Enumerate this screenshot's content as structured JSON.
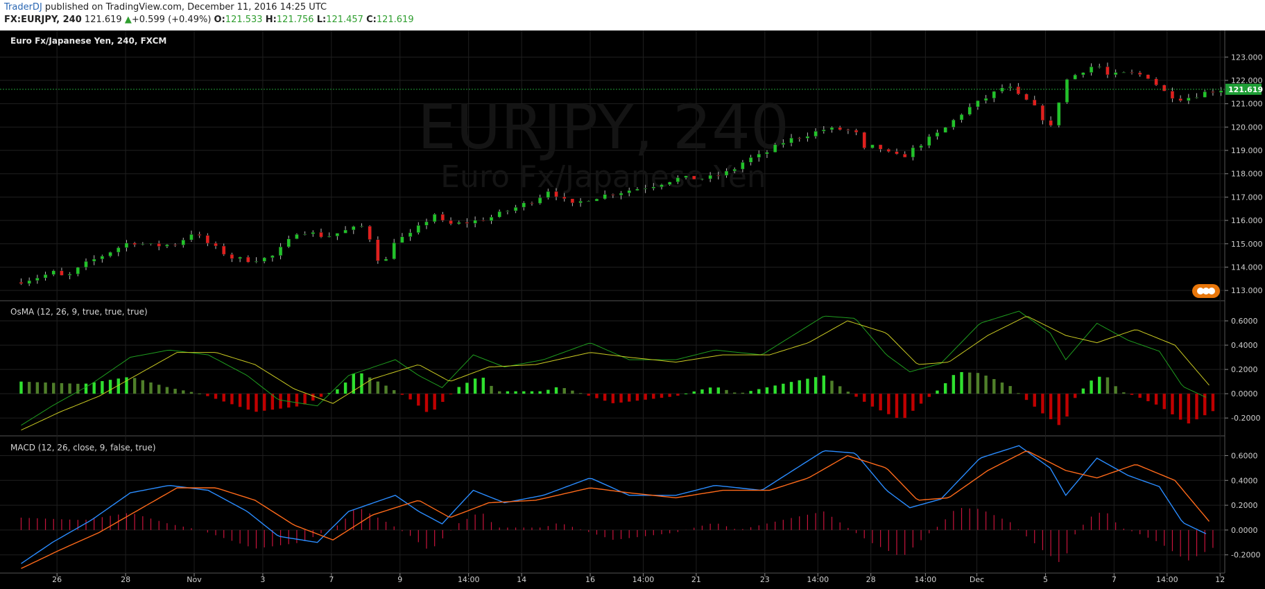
{
  "header": {
    "author": "TraderDJ",
    "published": "published on TradingView.com, December 11, 2016 14:25 UTC",
    "symbol": "FX:EURJPY, 240",
    "last": "121.619",
    "change": "+0.599 (+0.49%)",
    "o_label": "O:",
    "o_value": "121.533",
    "h_label": "H:",
    "h_value": "121.756",
    "l_label": "L:",
    "l_value": "121.457",
    "c_label": "C:",
    "c_value": "121.619"
  },
  "colors": {
    "background": "#000000",
    "grid": "#1f1f1f",
    "up_candle": "#22c22a",
    "down_candle": "#e0201e",
    "osma_up": "#2fe02f",
    "osma_up_weak": "#4f7f2a",
    "osma_down": "#c00000",
    "osma_macd_line": "#1f9e1f",
    "osma_signal_line": "#cccc22",
    "macd_line": "#2a8cff",
    "macd_signal": "#ff6a1a",
    "macd_hist": "#c8143c",
    "last_price_tag": "#1f9e36"
  },
  "chart_data": [
    {
      "type": "candlestick",
      "title": "Euro Fx/Japanese Yen, 240, FXCM",
      "watermark_symbol": "EURJPY, 240",
      "watermark_name": "Euro Fx/Japanese Yen",
      "ylim": [
        112.5,
        123.9
      ],
      "y_ticks": [
        "113.000",
        "114.000",
        "115.000",
        "116.000",
        "117.000",
        "118.000",
        "119.000",
        "120.000",
        "121.000",
        "122.000",
        "123.000"
      ],
      "last_price": "121.619",
      "close_path": [
        [
          0,
          113.4
        ],
        [
          12,
          113.6
        ],
        [
          22,
          113.8
        ],
        [
          28,
          113.5
        ],
        [
          40,
          114.1
        ],
        [
          55,
          114.6
        ],
        [
          70,
          115.1
        ],
        [
          85,
          114.9
        ],
        [
          100,
          115.0
        ],
        [
          110,
          115.5
        ],
        [
          120,
          115.0
        ],
        [
          135,
          114.4
        ],
        [
          145,
          114.3
        ],
        [
          160,
          114.4
        ],
        [
          170,
          115.0
        ],
        [
          178,
          115.6
        ],
        [
          195,
          115.3
        ],
        [
          210,
          115.6
        ],
        [
          222,
          115.8
        ],
        [
          226,
          114.4
        ],
        [
          234,
          114.3
        ],
        [
          238,
          115.1
        ],
        [
          250,
          115.4
        ],
        [
          265,
          116.3
        ],
        [
          272,
          115.8
        ],
        [
          285,
          115.9
        ],
        [
          300,
          116.1
        ],
        [
          315,
          116.5
        ],
        [
          330,
          116.9
        ],
        [
          338,
          117.3
        ],
        [
          346,
          117.0
        ],
        [
          352,
          116.6
        ],
        [
          362,
          116.9
        ],
        [
          375,
          117.1
        ],
        [
          390,
          117.3
        ],
        [
          405,
          117.5
        ],
        [
          420,
          117.8
        ],
        [
          440,
          117.8
        ],
        [
          455,
          118.1
        ],
        [
          465,
          118.6
        ],
        [
          475,
          118.8
        ],
        [
          490,
          119.4
        ],
        [
          505,
          119.7
        ],
        [
          515,
          119.9
        ],
        [
          525,
          119.9
        ],
        [
          535,
          119.8
        ],
        [
          540,
          119.0
        ],
        [
          548,
          119.2
        ],
        [
          558,
          118.8
        ],
        [
          565,
          118.7
        ],
        [
          575,
          119.2
        ],
        [
          590,
          119.8
        ],
        [
          605,
          120.7
        ],
        [
          615,
          121.1
        ],
        [
          625,
          121.5
        ],
        [
          632,
          121.8
        ],
        [
          640,
          121.3
        ],
        [
          648,
          121.0
        ],
        [
          655,
          120.4
        ],
        [
          660,
          119.9
        ],
        [
          665,
          121.0
        ],
        [
          670,
          122.0
        ],
        [
          680,
          122.4
        ],
        [
          690,
          122.7
        ],
        [
          697,
          122.2
        ],
        [
          710,
          122.3
        ],
        [
          722,
          122.2
        ],
        [
          735,
          121.4
        ],
        [
          745,
          121.2
        ],
        [
          760,
          121.5
        ],
        [
          770,
          121.619
        ]
      ]
    },
    {
      "type": "osma",
      "title": "OsMA (12, 26, 9, true, true, true)",
      "ylim": [
        -0.33,
        0.72
      ],
      "y_ticks": [
        "0.6000",
        "0.4000",
        "0.2000",
        "0.0000",
        "-0.2000"
      ],
      "macd_path": [
        [
          0,
          -0.26
        ],
        [
          20,
          -0.1
        ],
        [
          45,
          0.08
        ],
        [
          70,
          0.3
        ],
        [
          95,
          0.36
        ],
        [
          120,
          0.32
        ],
        [
          145,
          0.15
        ],
        [
          165,
          -0.05
        ],
        [
          190,
          -0.1
        ],
        [
          210,
          0.15
        ],
        [
          240,
          0.28
        ],
        [
          255,
          0.15
        ],
        [
          270,
          0.05
        ],
        [
          290,
          0.32
        ],
        [
          310,
          0.22
        ],
        [
          335,
          0.28
        ],
        [
          365,
          0.42
        ],
        [
          390,
          0.28
        ],
        [
          420,
          0.28
        ],
        [
          445,
          0.36
        ],
        [
          475,
          0.32
        ],
        [
          500,
          0.52
        ],
        [
          515,
          0.64
        ],
        [
          535,
          0.62
        ],
        [
          555,
          0.32
        ],
        [
          570,
          0.18
        ],
        [
          590,
          0.25
        ],
        [
          615,
          0.58
        ],
        [
          640,
          0.68
        ],
        [
          660,
          0.5
        ],
        [
          670,
          0.28
        ],
        [
          690,
          0.58
        ],
        [
          710,
          0.44
        ],
        [
          730,
          0.35
        ],
        [
          745,
          0.06
        ],
        [
          760,
          -0.03
        ]
      ],
      "signal_path": [
        [
          0,
          -0.3
        ],
        [
          25,
          -0.15
        ],
        [
          50,
          -0.02
        ],
        [
          75,
          0.16
        ],
        [
          100,
          0.34
        ],
        [
          125,
          0.34
        ],
        [
          150,
          0.24
        ],
        [
          175,
          0.04
        ],
        [
          200,
          -0.08
        ],
        [
          225,
          0.12
        ],
        [
          255,
          0.24
        ],
        [
          275,
          0.1
        ],
        [
          300,
          0.22
        ],
        [
          330,
          0.24
        ],
        [
          365,
          0.34
        ],
        [
          390,
          0.3
        ],
        [
          420,
          0.26
        ],
        [
          450,
          0.32
        ],
        [
          480,
          0.32
        ],
        [
          505,
          0.42
        ],
        [
          530,
          0.6
        ],
        [
          555,
          0.5
        ],
        [
          575,
          0.24
        ],
        [
          595,
          0.26
        ],
        [
          620,
          0.48
        ],
        [
          645,
          0.64
        ],
        [
          670,
          0.48
        ],
        [
          690,
          0.42
        ],
        [
          715,
          0.53
        ],
        [
          740,
          0.4
        ],
        [
          762,
          0.07
        ]
      ],
      "hist_segments": [
        [
          0,
          0.1
        ],
        [
          40,
          0.08
        ],
        [
          70,
          0.14
        ],
        [
          95,
          0.05
        ],
        [
          115,
          0.0
        ],
        [
          150,
          -0.15
        ],
        [
          180,
          -0.1
        ],
        [
          205,
          0.05
        ],
        [
          215,
          0.19
        ],
        [
          235,
          0.06
        ],
        [
          250,
          -0.05
        ],
        [
          262,
          -0.17
        ],
        [
          280,
          0.05
        ],
        [
          295,
          0.15
        ],
        [
          305,
          0.02
        ],
        [
          335,
          0.02
        ],
        [
          345,
          0.06
        ],
        [
          360,
          0.0
        ],
        [
          380,
          -0.08
        ],
        [
          420,
          -0.02
        ],
        [
          435,
          0.03
        ],
        [
          445,
          0.06
        ],
        [
          460,
          0.0
        ],
        [
          495,
          0.1
        ],
        [
          515,
          0.15
        ],
        [
          530,
          0.02
        ],
        [
          545,
          -0.1
        ],
        [
          565,
          -0.22
        ],
        [
          580,
          -0.05
        ],
        [
          590,
          0.05
        ],
        [
          600,
          0.18
        ],
        [
          615,
          0.17
        ],
        [
          635,
          0.06
        ],
        [
          640,
          0.0
        ],
        [
          655,
          -0.16
        ],
        [
          668,
          -0.28
        ],
        [
          675,
          -0.05
        ],
        [
          685,
          0.1
        ],
        [
          695,
          0.16
        ],
        [
          705,
          0.02
        ],
        [
          715,
          -0.02
        ],
        [
          730,
          -0.1
        ],
        [
          748,
          -0.25
        ],
        [
          768,
          -0.12
        ]
      ]
    },
    {
      "type": "macd",
      "title": "MACD (12, 26, close, 9, false, true)",
      "ylim": [
        -0.33,
        0.72
      ],
      "y_ticks": [
        "0.6000",
        "0.4000",
        "0.2000",
        "0.0000",
        "-0.2000"
      ],
      "macd_path": [
        [
          0,
          -0.27
        ],
        [
          20,
          -0.1
        ],
        [
          45,
          0.08
        ],
        [
          70,
          0.3
        ],
        [
          95,
          0.36
        ],
        [
          120,
          0.32
        ],
        [
          145,
          0.15
        ],
        [
          165,
          -0.05
        ],
        [
          190,
          -0.1
        ],
        [
          210,
          0.15
        ],
        [
          240,
          0.28
        ],
        [
          255,
          0.15
        ],
        [
          270,
          0.05
        ],
        [
          290,
          0.32
        ],
        [
          310,
          0.22
        ],
        [
          335,
          0.28
        ],
        [
          365,
          0.42
        ],
        [
          390,
          0.28
        ],
        [
          420,
          0.28
        ],
        [
          445,
          0.36
        ],
        [
          475,
          0.32
        ],
        [
          500,
          0.52
        ],
        [
          515,
          0.64
        ],
        [
          535,
          0.62
        ],
        [
          555,
          0.32
        ],
        [
          570,
          0.18
        ],
        [
          590,
          0.25
        ],
        [
          615,
          0.58
        ],
        [
          640,
          0.68
        ],
        [
          660,
          0.5
        ],
        [
          670,
          0.28
        ],
        [
          690,
          0.58
        ],
        [
          710,
          0.44
        ],
        [
          730,
          0.35
        ],
        [
          745,
          0.06
        ],
        [
          760,
          -0.03
        ]
      ],
      "signal_path": [
        [
          0,
          -0.31
        ],
        [
          25,
          -0.16
        ],
        [
          50,
          -0.02
        ],
        [
          75,
          0.16
        ],
        [
          100,
          0.34
        ],
        [
          125,
          0.34
        ],
        [
          150,
          0.24
        ],
        [
          175,
          0.04
        ],
        [
          200,
          -0.08
        ],
        [
          225,
          0.12
        ],
        [
          255,
          0.24
        ],
        [
          275,
          0.1
        ],
        [
          300,
          0.22
        ],
        [
          330,
          0.24
        ],
        [
          365,
          0.34
        ],
        [
          390,
          0.3
        ],
        [
          420,
          0.26
        ],
        [
          450,
          0.32
        ],
        [
          480,
          0.32
        ],
        [
          505,
          0.42
        ],
        [
          530,
          0.6
        ],
        [
          555,
          0.5
        ],
        [
          575,
          0.24
        ],
        [
          595,
          0.26
        ],
        [
          620,
          0.48
        ],
        [
          645,
          0.64
        ],
        [
          670,
          0.48
        ],
        [
          690,
          0.42
        ],
        [
          715,
          0.53
        ],
        [
          740,
          0.4
        ],
        [
          762,
          0.07
        ]
      ],
      "hist_segments": [
        [
          0,
          0.1
        ],
        [
          40,
          0.08
        ],
        [
          70,
          0.14
        ],
        [
          95,
          0.05
        ],
        [
          115,
          0.0
        ],
        [
          150,
          -0.15
        ],
        [
          180,
          -0.1
        ],
        [
          205,
          0.05
        ],
        [
          215,
          0.19
        ],
        [
          235,
          0.06
        ],
        [
          250,
          -0.05
        ],
        [
          262,
          -0.17
        ],
        [
          280,
          0.05
        ],
        [
          295,
          0.15
        ],
        [
          305,
          0.02
        ],
        [
          335,
          0.02
        ],
        [
          345,
          0.06
        ],
        [
          360,
          0.0
        ],
        [
          380,
          -0.08
        ],
        [
          420,
          -0.02
        ],
        [
          435,
          0.03
        ],
        [
          445,
          0.06
        ],
        [
          460,
          0.0
        ],
        [
          495,
          0.1
        ],
        [
          515,
          0.15
        ],
        [
          530,
          0.02
        ],
        [
          545,
          -0.1
        ],
        [
          565,
          -0.22
        ],
        [
          580,
          -0.05
        ],
        [
          590,
          0.05
        ],
        [
          600,
          0.18
        ],
        [
          615,
          0.17
        ],
        [
          635,
          0.06
        ],
        [
          640,
          0.0
        ],
        [
          655,
          -0.16
        ],
        [
          668,
          -0.28
        ],
        [
          675,
          -0.05
        ],
        [
          685,
          0.1
        ],
        [
          695,
          0.16
        ],
        [
          705,
          0.02
        ],
        [
          715,
          -0.02
        ],
        [
          730,
          -0.1
        ],
        [
          748,
          -0.25
        ],
        [
          768,
          -0.12
        ]
      ]
    }
  ],
  "x_axis": {
    "range": [
      -10,
      772
    ],
    "ticks": [
      {
        "label": "26",
        "x": 23
      },
      {
        "label": "28",
        "x": 67
      },
      {
        "label": "Nov",
        "x": 111
      },
      {
        "label": "3",
        "x": 155
      },
      {
        "label": "7",
        "x": 199
      },
      {
        "label": "9",
        "x": 243
      },
      {
        "label": "14:00",
        "x": 287
      },
      {
        "label": "14",
        "x": 321
      },
      {
        "label": "16",
        "x": 365
      },
      {
        "label": "14:00",
        "x": 399
      },
      {
        "label": "21",
        "x": 433
      },
      {
        "label": "23",
        "x": 477
      },
      {
        "label": "14:00",
        "x": 511
      },
      {
        "label": "28",
        "x": 545
      },
      {
        "label": "14:00",
        "x": 580
      },
      {
        "label": "Dec",
        "x": 613
      },
      {
        "label": "5",
        "x": 657
      },
      {
        "label": "7",
        "x": 701
      },
      {
        "label": "14:00",
        "x": 735
      },
      {
        "label": "12",
        "x": 769
      }
    ]
  }
}
